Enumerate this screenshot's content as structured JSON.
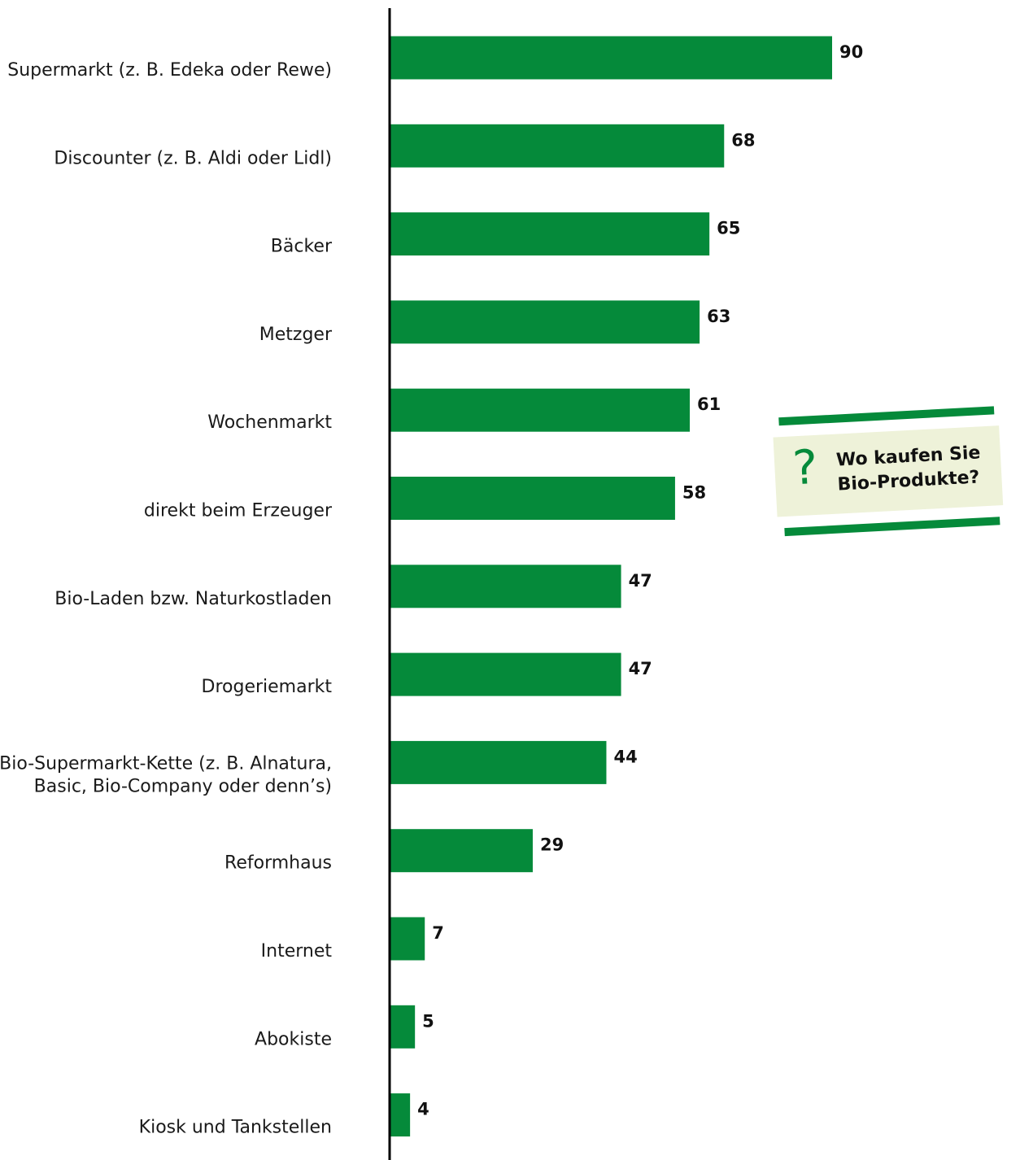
{
  "chart_data": {
    "type": "bar",
    "orientation": "horizontal",
    "categories": [
      "Supermarkt (z. B. Edeka oder Rewe)",
      "Discounter (z. B. Aldi oder Lidl)",
      "Bäcker",
      "Metzger",
      "Wochenmarkt",
      "direkt beim Erzeuger",
      "Bio-Laden bzw. Naturkostladen",
      "Drogeriemarkt",
      "Bio-Supermarkt-Kette (z. B. Alnatura, Basic, Bio-Company oder denn’s)",
      "Reformhaus",
      "Internet",
      "Abokiste",
      "Kiosk und Tankstellen"
    ],
    "category_lines": [
      [
        "Supermarkt (z. B. Edeka oder Rewe)"
      ],
      [
        "Discounter (z. B. Aldi oder Lidl)"
      ],
      [
        "Bäcker"
      ],
      [
        "Metzger"
      ],
      [
        "Wochenmarkt"
      ],
      [
        "direkt beim Erzeuger"
      ],
      [
        "Bio-Laden bzw. Naturkostladen"
      ],
      [
        "Drogeriemarkt"
      ],
      [
        "Bio-Supermarkt-Kette (z. B. Alnatura,",
        "Basic, Bio-Company oder denn’s)"
      ],
      [
        "Reformhaus"
      ],
      [
        "Internet"
      ],
      [
        "Abokiste"
      ],
      [
        "Kiosk und Tankstellen"
      ]
    ],
    "values": [
      90,
      68,
      65,
      63,
      61,
      58,
      47,
      47,
      44,
      29,
      7,
      5,
      4
    ],
    "value_labels": [
      "90",
      "68",
      "65",
      "63",
      "61",
      "58",
      "47",
      "47",
      "44",
      "29",
      "7",
      "5",
      "4"
    ],
    "xlim": [
      0,
      100
    ],
    "grid": false,
    "legend": "none",
    "bar_color": "#058a3a"
  },
  "callout": {
    "symbol": "?",
    "lines": [
      "Wo kaufen Sie",
      "Bio-Produkte?"
    ],
    "accent_color": "#058a3a",
    "box_color": "#eef2d9"
  }
}
